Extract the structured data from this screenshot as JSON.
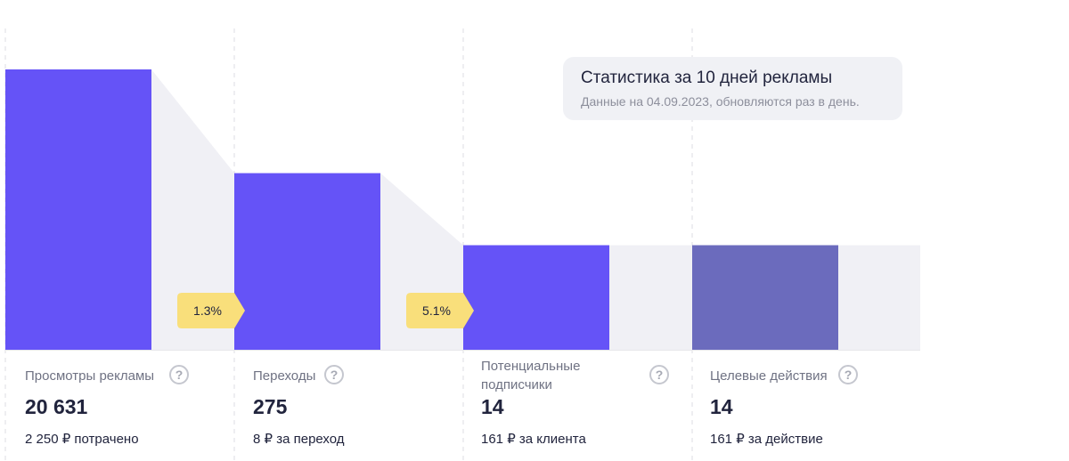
{
  "tooltip": {
    "title": "Статистика за 10 дней рекламы",
    "subtitle": "Данные на 04.09.2023, обновляются раз в день."
  },
  "columns": [
    {
      "label": "Просмотры рекламы",
      "value": "20 631",
      "sub": "2 250 ₽ потрачено"
    },
    {
      "label": "Переходы",
      "value": "275",
      "sub": "8 ₽ за переход"
    },
    {
      "label": "Потенциальные подписчики",
      "value": "14",
      "sub": "161 ₽ за клиента"
    },
    {
      "label": "Целевые действия",
      "value": "14",
      "sub": "161 ₽ за действие"
    }
  ],
  "chart_data": {
    "type": "bar",
    "categories": [
      "Просмотры рекламы",
      "Переходы",
      "Потенциальные подписчики",
      "Целевые действия"
    ],
    "values": [
      20631,
      275,
      14,
      14
    ],
    "display_levels": [
      1.0,
      0.63,
      0.373,
      0.373
    ],
    "conversion_labels": [
      "1.3%",
      "5.1%"
    ],
    "colors": {
      "bar": "#6553f7",
      "bar_last": "#6b6bbd",
      "connector": "#f0f0f5",
      "badge": "#f9df7b",
      "divider": "#dddde3",
      "baseline": "#e6e6ea"
    },
    "grid": "vertical-dashed",
    "legend": "none"
  }
}
